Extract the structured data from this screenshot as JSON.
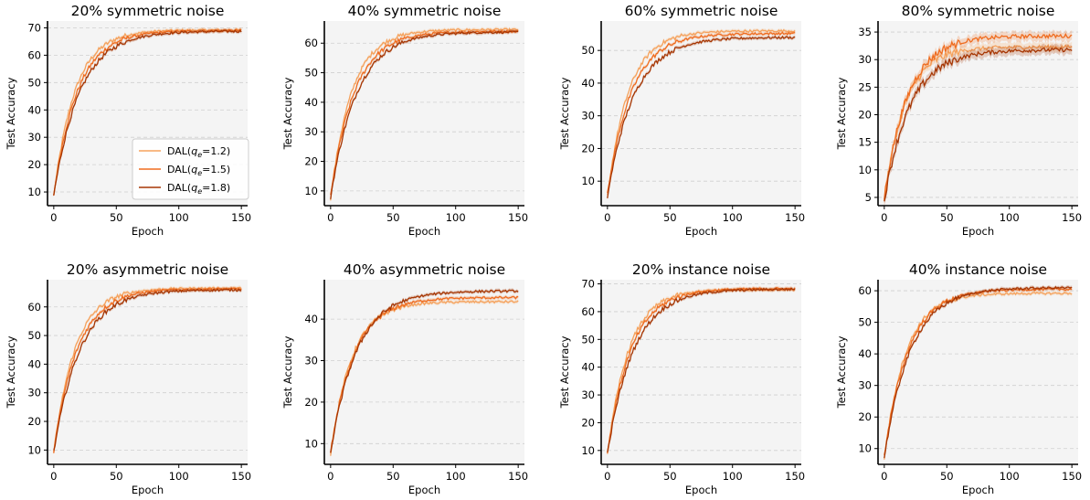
{
  "chart_data": {
    "legend": {
      "entries": [
        "DAL(q_e=1.2)",
        "DAL(q_e=1.5)",
        "DAL(q_e=1.8)"
      ],
      "entry_base": "DAL(",
      "entry_symbol": "q",
      "entry_subscript": "e",
      "entry_values": [
        "=1.2)",
        "=1.5)",
        "=1.8)"
      ],
      "colors": [
        "#f5a25d",
        "#ef6c1f",
        "#a63603"
      ],
      "placement": "lower right of first panel"
    },
    "panels": [
      {
        "type": "line",
        "title": "20% symmetric noise",
        "xlabel": "Epoch",
        "ylabel": "Test Accuracy",
        "xlim": [
          -5,
          155
        ],
        "ylim": [
          5,
          72.5
        ],
        "xticks": [
          0,
          50,
          100,
          150
        ],
        "yticks": [
          10,
          20,
          30,
          40,
          50,
          60,
          70
        ],
        "grid": true,
        "legend": true,
        "series": [
          {
            "name": "DAL(q_e=1.2)",
            "start": 8.5,
            "final": 69.2
          },
          {
            "name": "DAL(q_e=1.5)",
            "start": 9.0,
            "final": 69.0
          },
          {
            "name": "DAL(q_e=1.8)",
            "start": 8.8,
            "final": 68.8
          }
        ]
      },
      {
        "type": "line",
        "title": "40% symmetric noise",
        "xlabel": "Epoch",
        "ylabel": "Test Accuracy",
        "xlim": [
          -5,
          155
        ],
        "ylim": [
          5,
          67.5
        ],
        "xticks": [
          0,
          50,
          100,
          150
        ],
        "yticks": [
          10,
          20,
          30,
          40,
          50,
          60
        ],
        "grid": true,
        "legend": false,
        "series": [
          {
            "name": "DAL(q_e=1.2)",
            "start": 7.5,
            "final": 64.6
          },
          {
            "name": "DAL(q_e=1.5)",
            "start": 8.0,
            "final": 64.0
          },
          {
            "name": "DAL(q_e=1.8)",
            "start": 7.8,
            "final": 63.8
          }
        ]
      },
      {
        "type": "line",
        "title": "60% symmetric noise",
        "xlabel": "Epoch",
        "ylabel": "Test Accuracy",
        "xlim": [
          -5,
          155
        ],
        "ylim": [
          2.5,
          59
        ],
        "xticks": [
          0,
          50,
          100,
          150
        ],
        "yticks": [
          10,
          20,
          30,
          40,
          50
        ],
        "grid": true,
        "legend": false,
        "series": [
          {
            "name": "DAL(q_e=1.2)",
            "start": 5.5,
            "final": 56.0
          },
          {
            "name": "DAL(q_e=1.5)",
            "start": 5.8,
            "final": 55.2
          },
          {
            "name": "DAL(q_e=1.8)",
            "start": 5.2,
            "final": 54.0
          }
        ]
      },
      {
        "type": "line",
        "title": "80% symmetric noise",
        "xlabel": "Epoch",
        "ylabel": "Test Accuracy",
        "xlim": [
          -5,
          155
        ],
        "ylim": [
          3.5,
          37
        ],
        "xticks": [
          0,
          50,
          100,
          150
        ],
        "yticks": [
          5,
          10,
          15,
          20,
          25,
          30,
          35
        ],
        "grid": true,
        "legend": false,
        "series": [
          {
            "name": "DAL(q_e=1.2)",
            "start": 4.5,
            "final": 32.3
          },
          {
            "name": "DAL(q_e=1.5)",
            "start": 5.0,
            "final": 34.3
          },
          {
            "name": "DAL(q_e=1.8)",
            "start": 4.5,
            "final": 31.8
          }
        ]
      },
      {
        "type": "line",
        "title": "20% asymmetric noise",
        "xlabel": "Epoch",
        "ylabel": "Test Accuracy",
        "xlim": [
          -5,
          155
        ],
        "ylim": [
          5,
          69.5
        ],
        "xticks": [
          0,
          50,
          100,
          150
        ],
        "yticks": [
          10,
          20,
          30,
          40,
          50,
          60
        ],
        "grid": true,
        "legend": false,
        "series": [
          {
            "name": "DAL(q_e=1.2)",
            "start": 9.0,
            "final": 66.5
          },
          {
            "name": "DAL(q_e=1.5)",
            "start": 9.5,
            "final": 66.3
          },
          {
            "name": "DAL(q_e=1.8)",
            "start": 9.2,
            "final": 66.0
          }
        ]
      },
      {
        "type": "line",
        "title": "40% asymmetric noise",
        "xlabel": "Epoch",
        "ylabel": "Test Accuracy",
        "xlim": [
          -5,
          155
        ],
        "ylim": [
          5,
          49.5
        ],
        "xticks": [
          0,
          50,
          100,
          150
        ],
        "yticks": [
          10,
          20,
          30,
          40
        ],
        "grid": true,
        "legend": false,
        "series": [
          {
            "name": "DAL(q_e=1.2)",
            "start": 7.5,
            "final": 44.2
          },
          {
            "name": "DAL(q_e=1.5)",
            "start": 8.0,
            "final": 45.2
          },
          {
            "name": "DAL(q_e=1.8)",
            "start": 7.8,
            "final": 46.8
          }
        ]
      },
      {
        "type": "line",
        "title": "20% instance noise",
        "xlabel": "Epoch",
        "ylabel": "Test Accuracy",
        "xlim": [
          -5,
          155
        ],
        "ylim": [
          5,
          71.5
        ],
        "xticks": [
          0,
          50,
          100,
          150
        ],
        "yticks": [
          10,
          20,
          30,
          40,
          50,
          60,
          70
        ],
        "grid": true,
        "legend": false,
        "series": [
          {
            "name": "DAL(q_e=1.2)",
            "start": 8.5,
            "final": 68.0
          },
          {
            "name": "DAL(q_e=1.5)",
            "start": 9.0,
            "final": 68.3
          },
          {
            "name": "DAL(q_e=1.8)",
            "start": 8.8,
            "final": 68.1
          }
        ]
      },
      {
        "type": "line",
        "title": "40% instance noise",
        "xlabel": "Epoch",
        "ylabel": "Test Accuracy",
        "xlim": [
          -5,
          155
        ],
        "ylim": [
          5,
          63.5
        ],
        "xticks": [
          0,
          50,
          100,
          150
        ],
        "yticks": [
          10,
          20,
          30,
          40,
          50,
          60
        ],
        "grid": true,
        "legend": false,
        "series": [
          {
            "name": "DAL(q_e=1.2)",
            "start": 7.0,
            "final": 59.2
          },
          {
            "name": "DAL(q_e=1.5)",
            "start": 7.5,
            "final": 60.5
          },
          {
            "name": "DAL(q_e=1.8)",
            "start": 7.2,
            "final": 61.0
          }
        ]
      }
    ]
  }
}
